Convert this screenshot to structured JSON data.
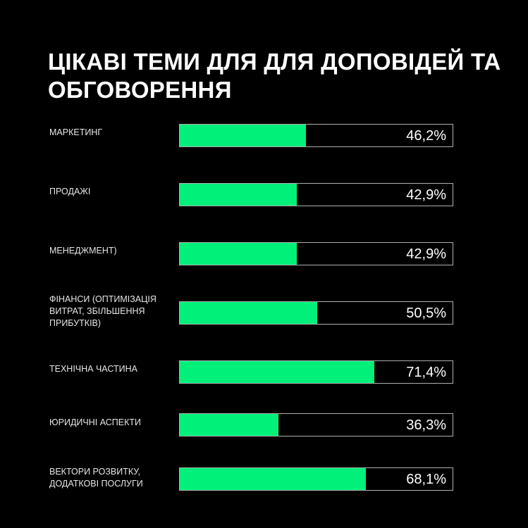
{
  "chart_data": {
    "type": "bar",
    "orientation": "horizontal",
    "title": "ЦІКАВІ ТЕМИ ДЛЯ ДЛЯ ДОПОВІДЕЙ ТА ОБГОВОРЕННЯ",
    "categories": [
      "МАРКЕТИНГ",
      "ПРОДАЖІ",
      "МЕНЕДЖМЕНТ)",
      "ФІНАНСИ (ОПТИМІЗАЦІЯ ВИТРАТ, ЗБІЛЬШЕННЯ ПРИБУТКІВ)",
      "ТЕХНІЧНА ЧАСТИНА",
      "ЮРИДИЧНІ АСПЕКТИ",
      "ВЕКТОРИ РОЗВИТКУ, ДОДАТКОВІ ПОСЛУГИ"
    ],
    "values": [
      46.2,
      42.9,
      42.9,
      50.5,
      71.4,
      36.3,
      68.1
    ],
    "value_labels": [
      "46,2%",
      "42,9%",
      "42,9%",
      "50,5%",
      "71,4%",
      "36,3%",
      "68,1%"
    ],
    "xlim": [
      0,
      100
    ],
    "grid": false,
    "colors": {
      "bar": "#00f07a",
      "background": "#000000",
      "track_border": "#b0b0b0"
    }
  }
}
